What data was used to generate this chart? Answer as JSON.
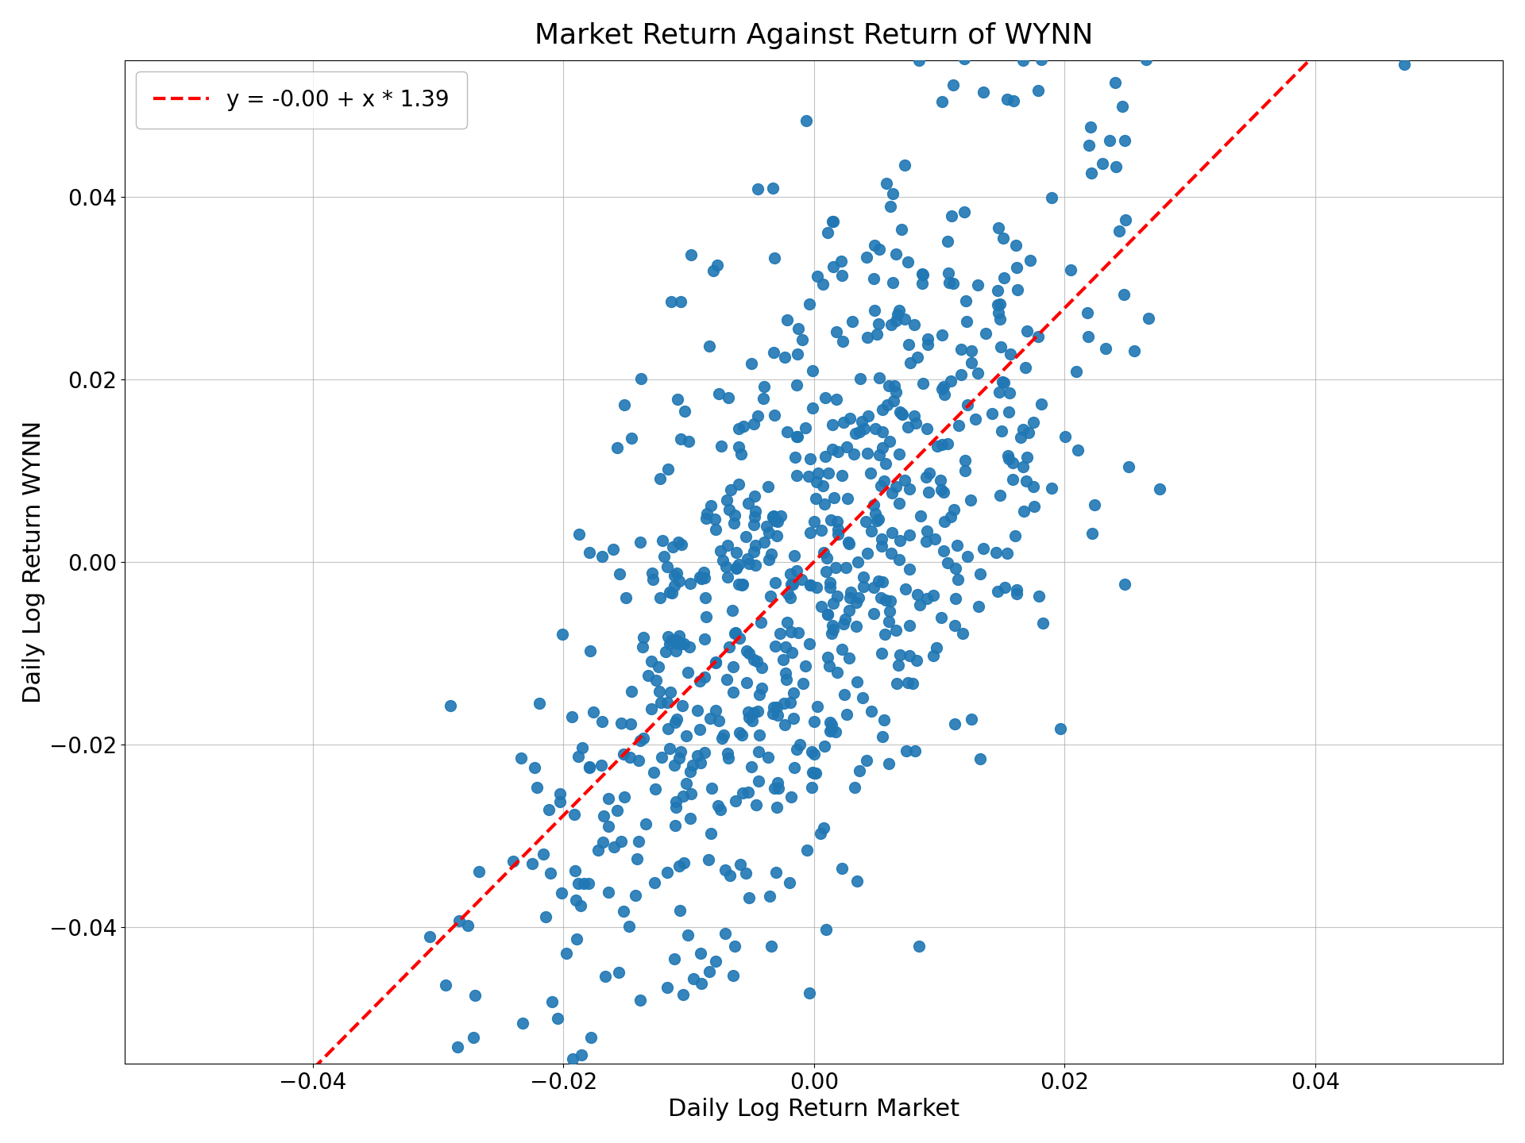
{
  "title": "Market Return Against Return of WYNN",
  "xlabel": "Daily Log Return Market",
  "ylabel": "Daily Log Return WYNN",
  "legend_label": "y = -0.00 + x * 1.39",
  "intercept": -0.0,
  "slope": 1.39,
  "scatter_color": "#1f77b4",
  "line_color": "#ff0000",
  "xlim": [
    -0.055,
    0.055
  ],
  "ylim": [
    -0.055,
    0.055
  ],
  "xticks": [
    -0.04,
    -0.02,
    0.0,
    0.02,
    0.04
  ],
  "yticks": [
    -0.04,
    -0.02,
    0.0,
    0.02,
    0.04
  ],
  "n_points": 750,
  "seed": 12345,
  "market_std": 0.012,
  "residual_std": 0.018,
  "title_fontsize": 26,
  "label_fontsize": 22,
  "tick_fontsize": 20,
  "legend_fontsize": 20,
  "marker_size": 100,
  "line_width": 3.0
}
